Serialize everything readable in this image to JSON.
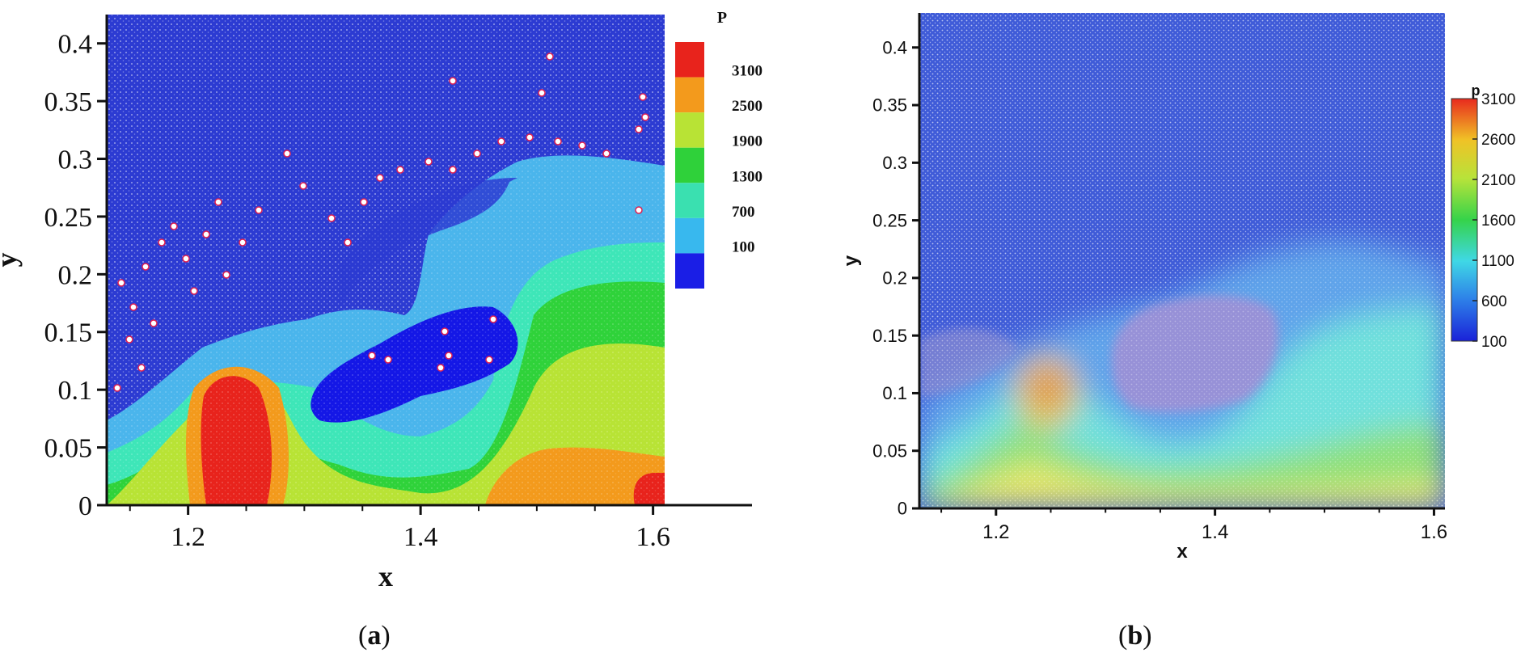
{
  "panels": [
    {
      "caption_letter": "a",
      "caption_open": "(",
      "caption_close": ")",
      "chart_data": {
        "type": "heatmap",
        "title": "",
        "xlabel": "x",
        "ylabel": "y",
        "xlim": [
          1.13,
          1.61
        ],
        "ylim": [
          0,
          0.425
        ],
        "x_ticks": [
          "1.2",
          "1.4",
          "1.6"
        ],
        "y_ticks": [
          "0",
          "0.05",
          "0.1",
          "0.15",
          "0.2",
          "0.25",
          "0.3",
          "0.35",
          "0.4"
        ],
        "legend_title": "P",
        "legend_levels": [
          "3100",
          "2500",
          "1900",
          "1300",
          "700",
          "100"
        ],
        "legend_colors": [
          "#e8231c",
          "#f39a1c",
          "#b8e335",
          "#2fd13a",
          "#3ae0b0",
          "#38b8ee",
          "#1a1ee6"
        ],
        "legend_placement": "right"
      }
    },
    {
      "caption_letter": "b",
      "caption_open": "(",
      "caption_close": ")",
      "chart_data": {
        "type": "heatmap",
        "title": "",
        "xlabel": "x",
        "ylabel": "y",
        "xlim": [
          1.13,
          1.61
        ],
        "ylim": [
          0,
          0.43
        ],
        "x_ticks": [
          "1.2",
          "1.4",
          "1.6"
        ],
        "y_ticks": [
          "0",
          "0.05",
          "0.1",
          "0.15",
          "0.2",
          "0.25",
          "0.3",
          "0.35",
          "0.4"
        ],
        "legend_title": "p",
        "legend_levels": [
          "3100",
          "2600",
          "2100",
          "1600",
          "1100",
          "600",
          "100"
        ],
        "legend_placement": "right"
      }
    }
  ]
}
